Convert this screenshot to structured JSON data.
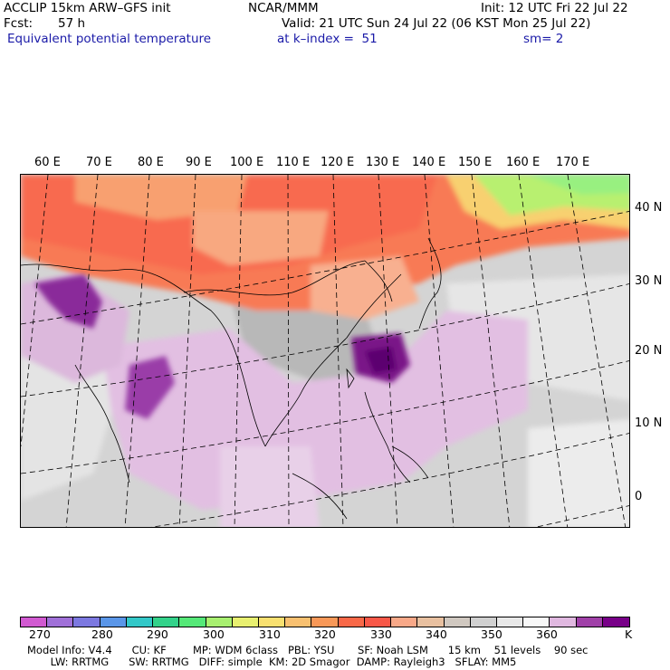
{
  "header": {
    "model_title": "ACCLIP 15km ARW–GFS init",
    "center": "NCAR/MMM",
    "init": "Init: 12 UTC Fri 22 Jul 22",
    "fcst_label": "Fcst:",
    "fcst_value": "57 h",
    "valid": "Valid: 21 UTC Sun 24 Jul 22 (06 KST Mon 25 Jul 22)",
    "field": "Equivalent potential temperature",
    "level": "at k–index =  51",
    "smoothing": "sm= 2"
  },
  "map": {
    "lon_labels": [
      "60 E",
      "70 E",
      "80 E",
      "90 E",
      "100 E",
      "110 E",
      "120 E",
      "130 E",
      "140 E",
      "150 E",
      "160 E",
      "170 E"
    ],
    "lat_labels": [
      "40 N",
      "30 N",
      "20 N",
      "10 N",
      "0"
    ]
  },
  "colorbar": {
    "unit": "K",
    "tick_labels": [
      "270",
      "280",
      "290",
      "300",
      "310",
      "320",
      "330",
      "340",
      "350",
      "360"
    ],
    "colors": [
      "#d15ad1",
      "#a070d8",
      "#7c78e0",
      "#5a96e8",
      "#33c8c8",
      "#33d28a",
      "#55e878",
      "#a8f070",
      "#e8f070",
      "#f8e070",
      "#f8c070",
      "#f89858",
      "#f86848",
      "#f85848",
      "#f8a888",
      "#e8c0a0",
      "#d0c8c0",
      "#d0d0d0",
      "#e8e8e8",
      "#f8f8f8",
      "#e0b8e0",
      "#a040a8",
      "#780088"
    ]
  },
  "footer": {
    "line1": "Model Info: V4.4      CU: KF        MP: WDM 6class   PBL: YSU       SF: Noah LSM      15 km    51 levels    90 sec",
    "line2": "       LW: RRTMG      SW: RRTMG   DIFF: simple  KM: 2D Smagor  DAMP: Rayleigh3   SFLAY: MM5"
  }
}
